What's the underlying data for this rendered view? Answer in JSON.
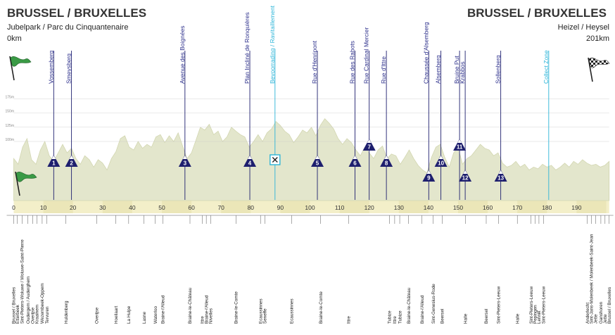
{
  "header": {
    "start_title": "BRUSSEL / BRUXELLES",
    "start_sub": "Jubelpark / Parc du Cinquantenaire",
    "start_km": "0km",
    "finish_title": "BRUSSEL / BRUXELLES",
    "finish_sub": "Heizel / Heysel",
    "finish_km": "201km"
  },
  "icons": {
    "start_flag": "green-flag-icon",
    "finish_flag": "checkered-flag-icon",
    "feed_zone": "feed-zone-icon",
    "climb_marker": "climb-triangle-icon"
  },
  "colors": {
    "profile_fill": "#e3e6cc",
    "profile_edge": "#d2d6b0",
    "climb_navy": "#1e1f6e",
    "feed_cyan": "#2bb4d8",
    "km_band": "#f3efc9",
    "start_flag": "#3a9a45"
  },
  "chart_data": {
    "type": "area",
    "title": "",
    "xlabel": "",
    "ylabel": "",
    "xlim": [
      0,
      201
    ],
    "x_ticks": [
      0,
      10,
      20,
      30,
      40,
      50,
      60,
      70,
      80,
      90,
      100,
      110,
      120,
      130,
      140,
      150,
      160,
      170,
      180,
      190
    ],
    "altitude_ticks": [
      {
        "value": 175,
        "label": "175m"
      },
      {
        "value": 150,
        "label": "150m"
      },
      {
        "value": 125,
        "label": "125m"
      },
      {
        "value": 100,
        "label": "100m"
      }
    ],
    "profile": [
      [
        0,
        70
      ],
      [
        1.5,
        60
      ],
      [
        3,
        90
      ],
      [
        4.5,
        105
      ],
      [
        6,
        68
      ],
      [
        7.5,
        60
      ],
      [
        9,
        85
      ],
      [
        10.5,
        100
      ],
      [
        12,
        75
      ],
      [
        13.5,
        65
      ],
      [
        15,
        80
      ],
      [
        16.5,
        95
      ],
      [
        18,
        80
      ],
      [
        19.5,
        88
      ],
      [
        21,
        70
      ],
      [
        22.5,
        60
      ],
      [
        24,
        75
      ],
      [
        25.5,
        68
      ],
      [
        27,
        55
      ],
      [
        28.5,
        68
      ],
      [
        30,
        62
      ],
      [
        31.5,
        50
      ],
      [
        33,
        70
      ],
      [
        34.5,
        82
      ],
      [
        36,
        105
      ],
      [
        37.5,
        110
      ],
      [
        39,
        90
      ],
      [
        40.5,
        85
      ],
      [
        42,
        100
      ],
      [
        43.5,
        88
      ],
      [
        45,
        95
      ],
      [
        46.5,
        90
      ],
      [
        48,
        108
      ],
      [
        49.5,
        112
      ],
      [
        51,
        98
      ],
      [
        52.5,
        110
      ],
      [
        54,
        100
      ],
      [
        55.5,
        115
      ],
      [
        57,
        92
      ],
      [
        58.5,
        70
      ],
      [
        60,
        80
      ],
      [
        61.5,
        102
      ],
      [
        63,
        125
      ],
      [
        64.5,
        120
      ],
      [
        66,
        130
      ],
      [
        67.5,
        112
      ],
      [
        69,
        118
      ],
      [
        70.5,
        100
      ],
      [
        72,
        108
      ],
      [
        73.5,
        125
      ],
      [
        75,
        118
      ],
      [
        76.5,
        112
      ],
      [
        78,
        108
      ],
      [
        79.5,
        90
      ],
      [
        81,
        100
      ],
      [
        82.5,
        112
      ],
      [
        84,
        100
      ],
      [
        85.5,
        115
      ],
      [
        87,
        122
      ],
      [
        88.5,
        135
      ],
      [
        90,
        128
      ],
      [
        91.5,
        118
      ],
      [
        93,
        112
      ],
      [
        94.5,
        98
      ],
      [
        96,
        108
      ],
      [
        97.5,
        120
      ],
      [
        99,
        115
      ],
      [
        100.5,
        125
      ],
      [
        102,
        110
      ],
      [
        103.5,
        128
      ],
      [
        105,
        140
      ],
      [
        106.5,
        132
      ],
      [
        108,
        122
      ],
      [
        109.5,
        105
      ],
      [
        111,
        95
      ],
      [
        112.5,
        105
      ],
      [
        114,
        98
      ],
      [
        115.5,
        85
      ],
      [
        117,
        75
      ],
      [
        118.5,
        90
      ],
      [
        120,
        80
      ],
      [
        121.5,
        70
      ],
      [
        123,
        85
      ],
      [
        124.5,
        92
      ],
      [
        126,
        70
      ],
      [
        127.5,
        78
      ],
      [
        129,
        75
      ],
      [
        130.5,
        60
      ],
      [
        132,
        72
      ],
      [
        133.5,
        85
      ],
      [
        135,
        70
      ],
      [
        136.5,
        58
      ],
      [
        138,
        50
      ],
      [
        139.5,
        45
      ],
      [
        141,
        72
      ],
      [
        142.5,
        90
      ],
      [
        144,
        95
      ],
      [
        145.5,
        72
      ],
      [
        147,
        55
      ],
      [
        148.5,
        80
      ],
      [
        150,
        90
      ],
      [
        151.5,
        60
      ],
      [
        153,
        70
      ],
      [
        154.5,
        75
      ],
      [
        156,
        85
      ],
      [
        157.5,
        95
      ],
      [
        159,
        88
      ],
      [
        160.5,
        85
      ],
      [
        162,
        75
      ],
      [
        163.5,
        80
      ],
      [
        165,
        62
      ],
      [
        166.5,
        55
      ],
      [
        168,
        58
      ],
      [
        169.5,
        65
      ],
      [
        171,
        55
      ],
      [
        172.5,
        60
      ],
      [
        174,
        50
      ],
      [
        175.5,
        55
      ],
      [
        177,
        52
      ],
      [
        178.5,
        60
      ],
      [
        180,
        55
      ],
      [
        181.5,
        58
      ],
      [
        183,
        50
      ],
      [
        184.5,
        55
      ],
      [
        186,
        62
      ],
      [
        187.5,
        55
      ],
      [
        189,
        65
      ],
      [
        190.5,
        60
      ],
      [
        192,
        68
      ],
      [
        193.5,
        62
      ],
      [
        195,
        58
      ],
      [
        196.5,
        60
      ],
      [
        198,
        55
      ],
      [
        199.5,
        58
      ],
      [
        201,
        65
      ]
    ],
    "climbs": [
      {
        "num": "1",
        "name": "Vossemberg",
        "km": 13.5
      },
      {
        "num": "2",
        "name": "Smeysberg",
        "km": 19.5
      },
      {
        "num": "3",
        "name": "Avenue des Boignées",
        "km": 57.8
      },
      {
        "num": "4",
        "name": "Plan Incliné de Ronquières",
        "km": 79.7
      },
      {
        "num": "5",
        "name": "Rue d'Henripont",
        "km": 102.5
      },
      {
        "num": "6",
        "name": "Rue des Rabots",
        "km": 115.2
      },
      {
        "num": "7",
        "name": "Rue Cardinal Mercier",
        "km": 120.0
      },
      {
        "num": "8",
        "name": "Rue d'Ittre",
        "km": 125.8
      },
      {
        "num": "9",
        "name": "Chaussée d'Alsemberg",
        "km": 140.1
      },
      {
        "num": "10",
        "name": "Alsemberg",
        "km": 144.2
      },
      {
        "num": "11",
        "name": "Bruine Put",
        "km": 150.5
      },
      {
        "num": "12",
        "name": "Krabbos",
        "km": 152.4
      },
      {
        "num": "13",
        "name": "Sollenberg",
        "km": 164.4
      }
    ],
    "feed_zone": {
      "label": "Bevoorrading / Ravitaillement",
      "km": 88.2
    },
    "collect_zone": {
      "label": "Collect Zone",
      "km": 180.6
    },
    "places": [
      {
        "name": "Brussel / Bruxelles",
        "km": 0
      },
      {
        "name": "Etterbeek",
        "km": 1.2
      },
      {
        "name": "Sint-Pieters-Woluwe / Woluwe-Saint-Pierre",
        "km": 2.8
      },
      {
        "name": "Oudergem / Auderghem",
        "km": 4.8
      },
      {
        "name": "Overijse",
        "km": 6.4
      },
      {
        "name": "Kraainem",
        "km": 7.8
      },
      {
        "name": "Wezembeek-Oppem",
        "km": 9.6
      },
      {
        "name": "Tervuren",
        "km": 11.2
      },
      {
        "name": "Huldenberg",
        "km": 17.6
      },
      {
        "name": "Overijse",
        "km": 28.0
      },
      {
        "name": "Hoeilaart",
        "km": 34.5
      },
      {
        "name": "La Hulpe",
        "km": 38.8
      },
      {
        "name": "Lasne",
        "km": 44.0
      },
      {
        "name": "Waterloo",
        "km": 47.8
      },
      {
        "name": "Braine-l'Alleud",
        "km": 50.3
      },
      {
        "name": "Braine-le-Château",
        "km": 59.5
      },
      {
        "name": "Ittre",
        "km": 63.6
      },
      {
        "name": "Braine-l'Alleud",
        "km": 65.0
      },
      {
        "name": "Nivelles",
        "km": 66.5
      },
      {
        "name": "Braine-le-Comte",
        "km": 75.0
      },
      {
        "name": "Ecaussinnes",
        "km": 83.3
      },
      {
        "name": "Seneffe",
        "km": 84.8
      },
      {
        "name": "Ecaussinnes",
        "km": 93.8
      },
      {
        "name": "Braine-le-Comte",
        "km": 103.6
      },
      {
        "name": "Ittre",
        "km": 113.0
      },
      {
        "name": "Tubize",
        "km": 126.8
      },
      {
        "name": "Ittre",
        "km": 128.6
      },
      {
        "name": "Tubize",
        "km": 130.3
      },
      {
        "name": "Braine-le-Château",
        "km": 133.3
      },
      {
        "name": "Braine-l'Alleud",
        "km": 137.8
      },
      {
        "name": "Sint-Genesius-Rode",
        "km": 141.6
      },
      {
        "name": "Beersel",
        "km": 144.6
      },
      {
        "name": "Halle",
        "km": 152.5
      },
      {
        "name": "Beersel",
        "km": 159.5
      },
      {
        "name": "Sint-Pieters-Leeuw",
        "km": 163.6
      },
      {
        "name": "Halle",
        "km": 170.0
      },
      {
        "name": "Sint-Pieters-Leeuw",
        "km": 174.6
      },
      {
        "name": "Pepingen",
        "km": 176.0
      },
      {
        "name": "Lennik",
        "km": 177.3
      },
      {
        "name": "Sint-Pieters-Leeuw",
        "km": 178.8
      },
      {
        "name": "Anderlecht",
        "km": 193.6
      },
      {
        "name": "Sint-Jans-Molenbeek / Molenbeek-Saint-Jean",
        "km": 195.0
      },
      {
        "name": "Jette",
        "km": 196.4
      },
      {
        "name": "Ganshoren",
        "km": 198.2
      },
      {
        "name": "Jette",
        "km": 199.6
      },
      {
        "name": "Brussel / Bruxelles",
        "km": 201.0
      }
    ]
  }
}
